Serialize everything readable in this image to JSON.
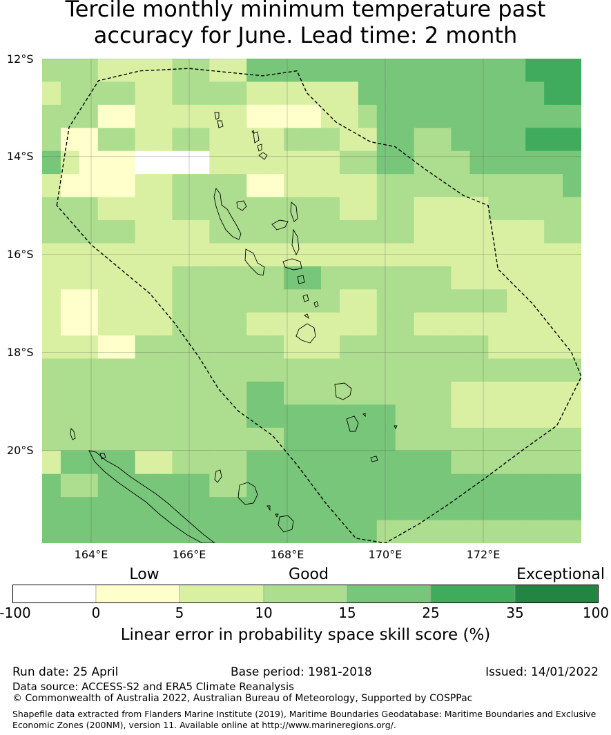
{
  "title": {
    "line1": "Tercile monthly minimum temperature past",
    "line2": "accuracy for June. Lead time: 2 month"
  },
  "map": {
    "lat_labels": [
      "12°S",
      "14°S",
      "16°S",
      "18°S",
      "20°S"
    ],
    "lon_labels": [
      "164°E",
      "166°E",
      "168°E",
      "170°E",
      "172°E"
    ],
    "extent": {
      "lon_min": 163.0,
      "lon_max": 174.0,
      "lat_min": -21.9,
      "lat_max": -12.0
    },
    "grid_lons": [
      164,
      166,
      168,
      170,
      172
    ],
    "grid_lats": [
      -12,
      -14,
      -16,
      -18,
      -20
    ],
    "colors": {
      "c0": "#ffffff",
      "c1": "#ffffcc",
      "c2": "#d9f0a3",
      "c3": "#addd8e",
      "c4": "#78c679",
      "c5": "#41ab5d",
      "c6": "#238443"
    },
    "cell_rows_note": "",
    "cells": [
      [
        3,
        3,
        3,
        2,
        2,
        2,
        2,
        3,
        3,
        2,
        2,
        4,
        4,
        4,
        4,
        4,
        4,
        4,
        4,
        4,
        4,
        4,
        4,
        4,
        4,
        4,
        5,
        5,
        5
      ],
      [
        2,
        3,
        3,
        3,
        3,
        2,
        2,
        3,
        3,
        3,
        3,
        2,
        2,
        2,
        2,
        2,
        2,
        4,
        4,
        4,
        4,
        4,
        4,
        4,
        4,
        4,
        4,
        5,
        5
      ],
      [
        3,
        3,
        3,
        1,
        1,
        2,
        2,
        2,
        2,
        2,
        2,
        1,
        1,
        1,
        1,
        2,
        2,
        3,
        4,
        4,
        4,
        4,
        4,
        4,
        4,
        4,
        4,
        4,
        4
      ],
      [
        3,
        1,
        1,
        3,
        3,
        2,
        2,
        3,
        3,
        2,
        2,
        2,
        2,
        3,
        3,
        3,
        2,
        2,
        4,
        4,
        3,
        3,
        4,
        4,
        4,
        4,
        5,
        5,
        5
      ],
      [
        4,
        2,
        1,
        1,
        1,
        0,
        0,
        0,
        0,
        2,
        2,
        2,
        2,
        2,
        2,
        2,
        3,
        3,
        4,
        4,
        3,
        3,
        3,
        4,
        4,
        4,
        4,
        4,
        4
      ],
      [
        2,
        1,
        1,
        1,
        1,
        2,
        2,
        3,
        3,
        3,
        3,
        1,
        1,
        2,
        2,
        2,
        2,
        2,
        3,
        3,
        3,
        3,
        3,
        3,
        3,
        3,
        3,
        3,
        4
      ],
      [
        3,
        3,
        3,
        2,
        2,
        2,
        2,
        3,
        3,
        3,
        3,
        3,
        3,
        3,
        3,
        3,
        2,
        2,
        3,
        3,
        2,
        2,
        2,
        2,
        3,
        3,
        3,
        3,
        3
      ],
      [
        3,
        3,
        3,
        3,
        3,
        2,
        2,
        2,
        2,
        3,
        3,
        3,
        3,
        3,
        3,
        3,
        3,
        3,
        3,
        3,
        2,
        2,
        2,
        2,
        2,
        2,
        2,
        3,
        3
      ],
      [
        2,
        2,
        2,
        2,
        2,
        2,
        2,
        2,
        2,
        2,
        2,
        2,
        2,
        2,
        2,
        2,
        2,
        2,
        2,
        2,
        2,
        2,
        2,
        2,
        2,
        2,
        2,
        2,
        2
      ],
      [
        2,
        2,
        2,
        2,
        2,
        2,
        2,
        3,
        3,
        3,
        3,
        3,
        3,
        4,
        4,
        3,
        3,
        3,
        3,
        3,
        3,
        3,
        2,
        2,
        2,
        2,
        2,
        2,
        2
      ],
      [
        2,
        1,
        1,
        2,
        2,
        2,
        2,
        3,
        3,
        3,
        3,
        3,
        3,
        3,
        3,
        3,
        2,
        2,
        3,
        3,
        3,
        3,
        3,
        3,
        3,
        2,
        2,
        2,
        2
      ],
      [
        2,
        1,
        1,
        2,
        2,
        2,
        2,
        3,
        3,
        3,
        3,
        2,
        2,
        2,
        2,
        2,
        2,
        2,
        3,
        3,
        2,
        2,
        2,
        2,
        2,
        2,
        2,
        2,
        2
      ],
      [
        2,
        2,
        2,
        1,
        1,
        3,
        3,
        3,
        3,
        3,
        3,
        3,
        3,
        2,
        2,
        2,
        3,
        3,
        3,
        3,
        3,
        3,
        3,
        3,
        2,
        2,
        2,
        2,
        2
      ],
      [
        3,
        3,
        3,
        3,
        3,
        3,
        3,
        3,
        3,
        3,
        3,
        3,
        3,
        3,
        3,
        3,
        3,
        3,
        3,
        3,
        3,
        3,
        3,
        3,
        3,
        3,
        3,
        3,
        3
      ],
      [
        3,
        3,
        3,
        3,
        3,
        3,
        3,
        3,
        3,
        3,
        3,
        4,
        4,
        3,
        3,
        3,
        3,
        3,
        3,
        3,
        3,
        3,
        2,
        2,
        2,
        2,
        2,
        2,
        2
      ],
      [
        3,
        3,
        3,
        3,
        3,
        3,
        3,
        3,
        3,
        3,
        3,
        4,
        4,
        4,
        4,
        4,
        4,
        4,
        4,
        3,
        3,
        3,
        2,
        2,
        2,
        2,
        2,
        2,
        2
      ],
      [
        3,
        3,
        3,
        3,
        3,
        3,
        3,
        3,
        3,
        3,
        3,
        3,
        3,
        4,
        4,
        4,
        4,
        4,
        4,
        3,
        3,
        3,
        3,
        3,
        3,
        3,
        3,
        3,
        3
      ],
      [
        2,
        4,
        4,
        4,
        4,
        2,
        2,
        3,
        3,
        3,
        3,
        4,
        4,
        4,
        4,
        4,
        4,
        4,
        4,
        4,
        4,
        4,
        3,
        3,
        3,
        3,
        3,
        3,
        3
      ],
      [
        4,
        3,
        3,
        4,
        4,
        4,
        4,
        4,
        4,
        3,
        3,
        4,
        4,
        4,
        4,
        4,
        4,
        4,
        4,
        4,
        4,
        4,
        4,
        4,
        4,
        4,
        4,
        4,
        4
      ],
      [
        4,
        4,
        4,
        4,
        4,
        4,
        4,
        4,
        4,
        4,
        4,
        4,
        4,
        4,
        4,
        4,
        4,
        4,
        4,
        4,
        4,
        4,
        4,
        4,
        4,
        4,
        4,
        4,
        4
      ],
      [
        4,
        4,
        4,
        4,
        4,
        4,
        4,
        4,
        4,
        4,
        4,
        4,
        4,
        4,
        4,
        4,
        4,
        4,
        3,
        3,
        3,
        3,
        3,
        3,
        3,
        3,
        3,
        3,
        3
      ]
    ],
    "eez_boundary": [
      [
        163.3,
        -15.0
      ],
      [
        163.55,
        -13.4
      ],
      [
        164.15,
        -12.45
      ],
      [
        165.0,
        -12.25
      ],
      [
        166.0,
        -12.2
      ],
      [
        166.8,
        -12.28
      ],
      [
        167.5,
        -12.35
      ],
      [
        168.2,
        -12.25
      ],
      [
        168.4,
        -12.7
      ],
      [
        169.0,
        -13.3
      ],
      [
        169.7,
        -13.7
      ],
      [
        170.2,
        -13.8
      ],
      [
        170.8,
        -14.25
      ],
      [
        171.6,
        -14.8
      ],
      [
        172.1,
        -15.0
      ],
      [
        172.3,
        -16.3
      ],
      [
        173.0,
        -17.0
      ],
      [
        173.8,
        -18.0
      ],
      [
        174.0,
        -18.5
      ],
      [
        173.5,
        -19.5
      ],
      [
        172.8,
        -20.0
      ],
      [
        172.0,
        -20.6
      ],
      [
        171.3,
        -21.1
      ],
      [
        170.7,
        -21.5
      ],
      [
        170.0,
        -21.9
      ],
      [
        169.4,
        -21.8
      ],
      [
        168.8,
        -21.1
      ],
      [
        168.2,
        -20.3
      ],
      [
        167.7,
        -19.7
      ],
      [
        167.0,
        -19.2
      ],
      [
        166.6,
        -18.75
      ],
      [
        166.2,
        -18.1
      ],
      [
        165.7,
        -17.4
      ],
      [
        165.2,
        -16.8
      ],
      [
        164.6,
        -16.3
      ],
      [
        164.0,
        -15.8
      ],
      [
        163.3,
        -15.0
      ]
    ]
  },
  "colorbar": {
    "categories": [
      "Low",
      "Good",
      "Exceptional"
    ],
    "ticks": [
      "-100",
      "0",
      "5",
      "10",
      "15",
      "25",
      "35",
      "100"
    ],
    "swatches": [
      "#ffffff",
      "#ffffcc",
      "#d9f0a3",
      "#addd8e",
      "#78c679",
      "#41ab5d",
      "#238443"
    ],
    "label": "Linear error in probability space skill score (%)"
  },
  "footer": {
    "run_date": "Run date: 25 April",
    "base_period": "Base period: 1981-2018",
    "issued": "Issued: 14/01/2022",
    "data_source": "Data source: ACCESS-S2 and ERA5 Climate Reanalysis",
    "copyright": "© Commonwealth of Australia 2022, Australian Bureau of Meteorology, Supported by COSPPac",
    "shapefile_line1": "Shapefile data extracted from Flanders Marine Institute (2019), Maritime Boundaries Geodatabase: Maritime Boundaries and Exclusive",
    "shapefile_line2": "Economic Zones (200NM), version 11. Available online at http://www.marineregions.org/."
  }
}
